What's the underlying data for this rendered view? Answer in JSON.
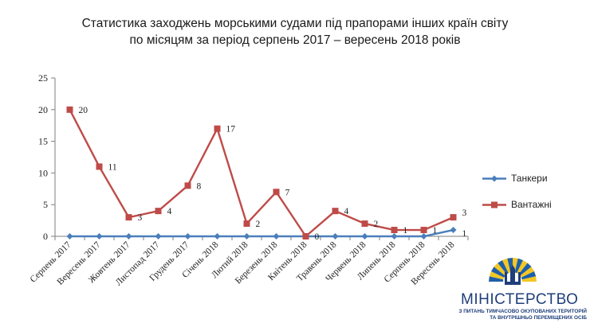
{
  "chart_data": {
    "type": "line",
    "title_lines": [
      "Статистика заходжень морськими судами під прапорами інших країн світу",
      "по місяцям за період серпень 2017 – вересень 2018 років"
    ],
    "categories": [
      "Серпень 2017",
      "Вересень 2017",
      "Жовтень 2017",
      "Листопад 2017",
      "Грудень 2017",
      "Січень 2018",
      "Лютий 2018",
      "Березень 2018",
      "Квітень 2018",
      "Травень 2018",
      "Червень 2018",
      "Липень 2018",
      "Серпень 2018",
      "Вересень 2018"
    ],
    "ylim": [
      0,
      25
    ],
    "yticks": [
      0,
      5,
      10,
      15,
      20,
      25
    ],
    "grid": false,
    "legend_position": "right",
    "series": [
      {
        "name": "Танкери",
        "color": "#4a7ebb",
        "marker": "diamond",
        "values": [
          0,
          0,
          0,
          0,
          0,
          0,
          0,
          0,
          0,
          0,
          0,
          0,
          0,
          1
        ],
        "data_labels": [
          null,
          null,
          null,
          null,
          null,
          null,
          null,
          null,
          null,
          null,
          null,
          null,
          null,
          "1"
        ]
      },
      {
        "name": "Вантажні",
        "color": "#be4b48",
        "marker": "square",
        "values": [
          20,
          11,
          3,
          4,
          8,
          17,
          2,
          7,
          0,
          4,
          2,
          1,
          1,
          3
        ],
        "data_labels": [
          "20",
          "11",
          "3",
          "4",
          "8",
          "17",
          "2",
          "7",
          "0",
          "4",
          "2",
          "1",
          "1",
          "3"
        ]
      }
    ]
  },
  "logo": {
    "name": "МІНІСТЕРСТВО",
    "subtitle_lines": [
      "З ПИТАНЬ ТИМЧАСОВО ОКУПОВАНИХ ТЕРИТОРІЙ",
      "ТА ВНУТРІШНЬО ПЕРЕМІЩЕНИХ ОСІБ"
    ],
    "colors": {
      "blue": "#1f5fa8",
      "yellow": "#f3c623"
    }
  }
}
